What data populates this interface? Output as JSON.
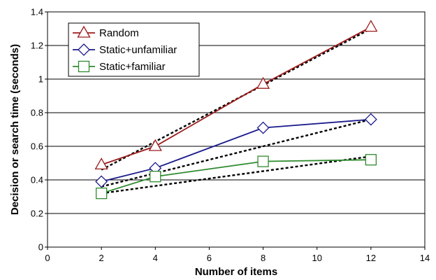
{
  "chart_data": {
    "type": "line",
    "title": "",
    "xlabel": "Number of items",
    "ylabel": "Decision or search time (seconds)",
    "xlim": [
      0,
      14
    ],
    "ylim": [
      0,
      1.4
    ],
    "xticks": [
      "0",
      "2",
      "4",
      "6",
      "8",
      "10",
      "12",
      "14"
    ],
    "yticks": [
      "0",
      "0.2",
      "0.4",
      "0.6",
      "0.8",
      "1",
      "1.2",
      "1.4"
    ],
    "grid": "horizontal",
    "legend_position": "top-left",
    "series": [
      {
        "name": "Random",
        "marker": "triangle",
        "color": "#9B1C1C",
        "x": [
          2,
          4,
          8,
          12
        ],
        "y": [
          0.49,
          0.6,
          0.97,
          1.31
        ]
      },
      {
        "name": "Static+unfamiliar",
        "marker": "diamond",
        "color": "#1A1A8C",
        "x": [
          2,
          4,
          8,
          12
        ],
        "y": [
          0.39,
          0.47,
          0.71,
          0.76
        ]
      },
      {
        "name": "Static+familiar",
        "marker": "square",
        "color": "#2E8B2E",
        "x": [
          2,
          4,
          8,
          12
        ],
        "y": [
          0.32,
          0.42,
          0.51,
          0.52
        ]
      }
    ],
    "fits": [
      {
        "x": [
          2,
          12
        ],
        "y": [
          0.46,
          1.3
        ]
      },
      {
        "x": [
          2,
          12
        ],
        "y": [
          0.36,
          0.76
        ]
      },
      {
        "x": [
          2,
          12
        ],
        "y": [
          0.32,
          0.54
        ]
      }
    ]
  }
}
